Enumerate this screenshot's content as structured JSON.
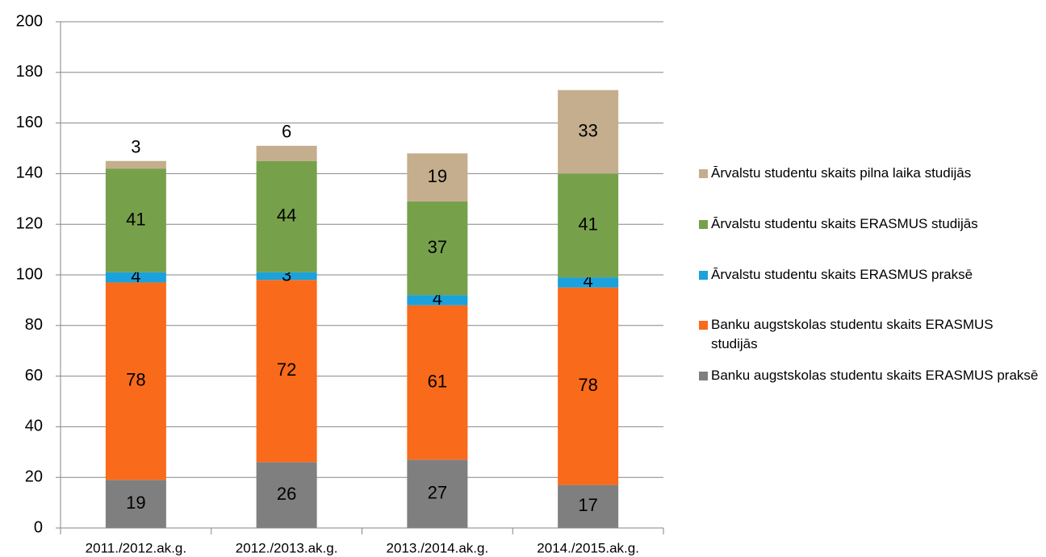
{
  "chart_data": {
    "type": "stacked_bar",
    "categories": [
      "2011./2012.ak.g.",
      "2012./2013.ak.g.",
      "2013./2014.ak.g.",
      "2014./2015.ak.g."
    ],
    "series": [
      {
        "name": "Banku augstskolas studentu skaits ERASMUS praksē",
        "color": "#7f7f7f",
        "values": [
          19,
          26,
          27,
          17
        ]
      },
      {
        "name": "Banku augstskolas studentu skaits ERASMUS studijās",
        "color": "#f96a1b",
        "values": [
          78,
          72,
          61,
          78
        ]
      },
      {
        "name": "Ārvalstu studentu skaits ERASMUS praksē",
        "color": "#1ba1db",
        "values": [
          4,
          3,
          4,
          4
        ]
      },
      {
        "name": "Ārvalstu studentu skaits ERASMUS studijās",
        "color": "#77a04b",
        "values": [
          41,
          44,
          37,
          41
        ]
      },
      {
        "name": "Ārvalstu studentu skaits pilna laika studijās",
        "color": "#c4ae8d",
        "values": [
          3,
          6,
          19,
          33
        ]
      }
    ],
    "ylim": [
      0,
      200
    ],
    "yticks": [
      0,
      20,
      40,
      60,
      80,
      100,
      120,
      140,
      160,
      180,
      200
    ],
    "grid": true,
    "legend": "right"
  }
}
